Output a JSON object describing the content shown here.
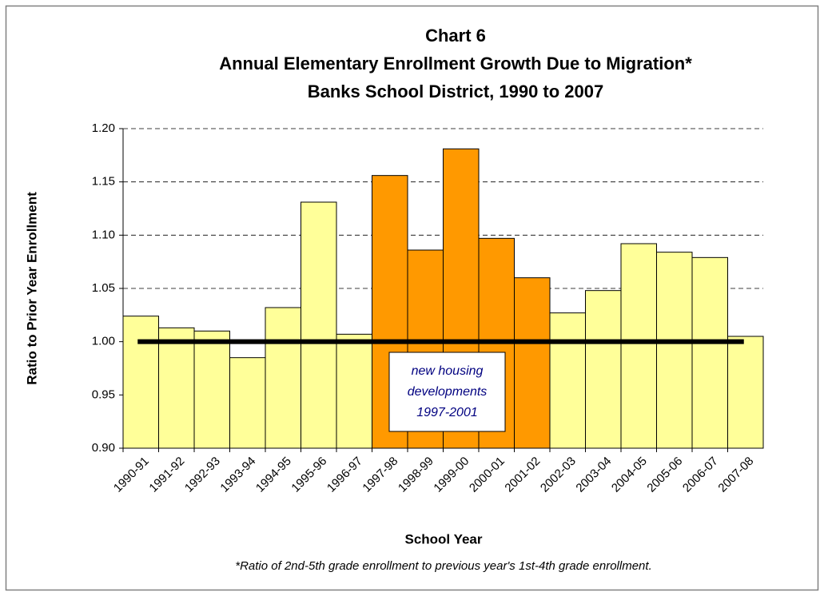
{
  "chart_data": {
    "type": "bar",
    "title": [
      "Chart 6",
      "Annual Elementary Enrollment Growth Due to Migration*",
      "Banks School District, 1990 to 2007"
    ],
    "x_label": "School Year",
    "y_label": "Ratio to Prior Year Enrollment",
    "footnote": "*Ratio of 2nd-5th grade enrollment to previous year's 1st-4th grade enrollment.",
    "categories": [
      "1990-91",
      "1991-92",
      "1992-93",
      "1993-94",
      "1994-95",
      "1995-96",
      "1996-97",
      "1997-98",
      "1998-99",
      "1999-00",
      "2000-01",
      "2001-02",
      "2002-03",
      "2003-04",
      "2004-05",
      "2005-06",
      "2006-07",
      "2007-08"
    ],
    "values": [
      1.024,
      1.013,
      1.01,
      0.985,
      1.032,
      1.131,
      1.007,
      1.156,
      1.086,
      1.181,
      1.097,
      1.06,
      1.027,
      1.048,
      1.092,
      1.084,
      1.079,
      1.005
    ],
    "colors": [
      "#ffff99",
      "#ffff99",
      "#ffff99",
      "#ffff99",
      "#ffff99",
      "#ffff99",
      "#ffff99",
      "#ff9900",
      "#ff9900",
      "#ff9900",
      "#ff9900",
      "#ff9900",
      "#ffff99",
      "#ffff99",
      "#ffff99",
      "#ffff99",
      "#ffff99",
      "#ffff99"
    ],
    "reference_line": 1,
    "annotation": [
      "new housing",
      "developments",
      "1997-2001"
    ],
    "ylim": [
      0.9,
      1.2
    ],
    "yticks": [
      {
        "value": 0.9,
        "label": "0.90"
      },
      {
        "value": 0.95,
        "label": "0.95"
      },
      {
        "value": 1.0,
        "label": "1.00"
      },
      {
        "value": 1.05,
        "label": "1.05"
      },
      {
        "value": 1.1,
        "label": "1.10"
      },
      {
        "value": 1.15,
        "label": "1.15"
      },
      {
        "value": 1.2,
        "label": "1.20"
      }
    ],
    "grid": true
  }
}
